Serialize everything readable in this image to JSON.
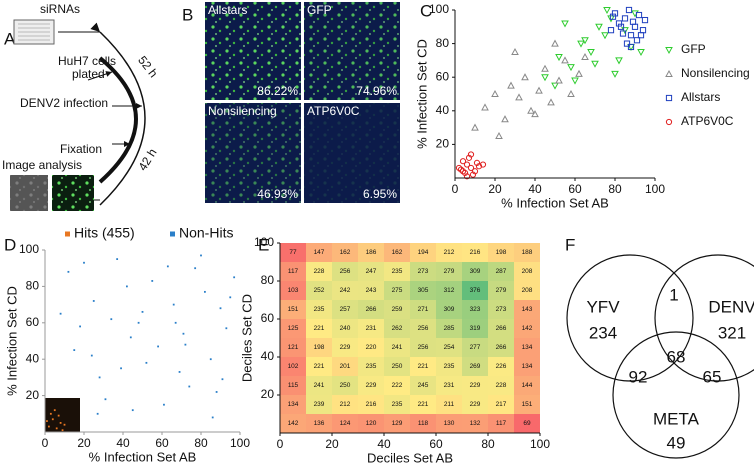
{
  "panel_labels": [
    "A",
    "B",
    "C",
    "D",
    "E",
    "F"
  ],
  "workflow": {
    "sirnas": "siRNAs",
    "cells": [
      "HuH7 cells",
      "plated"
    ],
    "infection": "DENV2 infection",
    "fixation": "Fixation",
    "analysis": "Image analysis",
    "time_total": "52 h",
    "time_infection": "42 h"
  },
  "images": [
    {
      "label": "Allstars",
      "percent": "86.22%"
    },
    {
      "label": "GFP",
      "percent": "74.96%"
    },
    {
      "label": "Nonsilencing",
      "percent": "46.93%"
    },
    {
      "label": "ATP6V0C",
      "percent": "6.95%"
    }
  ],
  "chart_data": [
    {
      "type": "scatter",
      "xlabel": "% Infection Set AB",
      "ylabel": "% Infection Set CD",
      "xlim": [
        0,
        100
      ],
      "ylim": [
        0,
        100
      ],
      "xticks": [
        0,
        20,
        40,
        60,
        80,
        100
      ],
      "yticks": [
        20,
        40,
        60,
        80,
        100
      ],
      "legend": "right",
      "series": [
        {
          "name": "GFP",
          "color": "#2ecc2e",
          "marker": "triangle-down",
          "x": [
            45,
            52,
            58,
            63,
            68,
            72,
            75,
            78,
            82,
            85,
            88,
            60,
            55,
            70,
            80,
            90,
            65,
            50,
            93,
            76
          ],
          "values": [
            60,
            72,
            66,
            80,
            75,
            90,
            85,
            95,
            70,
            88,
            78,
            58,
            92,
            68,
            62,
            98,
            82,
            55,
            75,
            100
          ]
        },
        {
          "name": "Nonsilencing",
          "color": "#888888",
          "marker": "triangle-up",
          "x": [
            10,
            15,
            20,
            25,
            28,
            32,
            35,
            38,
            42,
            45,
            48,
            52,
            55,
            58,
            62,
            30,
            40,
            22,
            50,
            65
          ],
          "values": [
            30,
            42,
            50,
            35,
            55,
            48,
            60,
            40,
            52,
            65,
            45,
            58,
            70,
            50,
            62,
            75,
            38,
            25,
            80,
            72
          ]
        },
        {
          "name": "Allstars",
          "color": "#1f3fbf",
          "marker": "square",
          "x": [
            78,
            82,
            85,
            88,
            90,
            92,
            94,
            86,
            80,
            84,
            89,
            91,
            87,
            83,
            95,
            93,
            79,
            88
          ],
          "values": [
            88,
            92,
            95,
            85,
            90,
            97,
            88,
            80,
            98,
            86,
            93,
            82,
            100,
            90,
            94,
            85,
            96,
            78
          ]
        },
        {
          "name": "ATP6V0C",
          "color": "#e02020",
          "marker": "circle",
          "x": [
            3,
            5,
            6,
            8,
            4,
            10,
            12,
            7,
            2,
            9,
            11,
            6,
            4,
            14,
            8
          ],
          "values": [
            5,
            3,
            8,
            6,
            10,
            4,
            7,
            12,
            6,
            2,
            9,
            1,
            4,
            8,
            14
          ]
        }
      ]
    },
    {
      "type": "scatter",
      "xlabel": "% Infection Set AB",
      "ylabel": "% Infection Set CD",
      "xlim": [
        0,
        100
      ],
      "ylim": [
        0,
        100
      ],
      "xticks": [
        0,
        20,
        40,
        60,
        80,
        100
      ],
      "yticks": [
        20,
        40,
        60,
        80,
        100
      ],
      "legend": "top",
      "series": [
        {
          "name": "Hits (455)",
          "color": "#e87722",
          "marker": "dot",
          "x": [
            2,
            4,
            6,
            3,
            8,
            5,
            10,
            7,
            1,
            9
          ],
          "values": [
            3,
            7,
            2,
            10,
            5,
            12,
            4,
            9,
            6,
            1
          ]
        },
        {
          "name": "Non-Hits",
          "color": "#2a7fc9",
          "marker": "dot",
          "x": [
            12,
            25,
            37,
            48,
            55,
            63,
            71,
            82,
            90,
            97,
            15,
            28,
            34,
            44,
            52,
            66,
            74,
            85,
            93,
            8,
            20,
            31,
            42,
            58,
            69,
            77,
            88,
            95,
            18,
            27,
            39,
            50,
            61,
            72,
            80,
            91,
            24,
            45,
            67,
            86
          ],
          "values": [
            88,
            72,
            95,
            60,
            83,
            91,
            54,
            77,
            68,
            85,
            45,
            30,
            62,
            52,
            38,
            70,
            25,
            40,
            57,
            65,
            93,
            18,
            80,
            47,
            33,
            90,
            22,
            74,
            58,
            10,
            35,
            66,
            15,
            48,
            97,
            29,
            42,
            12,
            60,
            8
          ]
        }
      ]
    },
    {
      "type": "heatmap",
      "xlabel": "Deciles  Set AB",
      "ylabel": "Deciles Set CD",
      "xlim": [
        0,
        100
      ],
      "ylim": [
        0,
        100
      ],
      "xticks": [
        0,
        20,
        40,
        60,
        80,
        100
      ],
      "yticks": [
        20,
        40,
        60,
        80,
        100
      ],
      "colorscale": [
        "#f8696b",
        "#ffeb84",
        "#63be7b"
      ],
      "rows": [
        [
          77,
          147,
          162,
          186,
          162,
          194,
          212,
          216,
          198,
          188
        ],
        [
          117,
          228,
          256,
          247,
          235,
          273,
          279,
          309,
          287,
          208
        ],
        [
          103,
          252,
          242,
          243,
          275,
          305,
          312,
          376,
          279,
          208
        ],
        [
          151,
          235,
          257,
          266,
          259,
          271,
          309,
          323,
          273,
          143
        ],
        [
          125,
          221,
          240,
          231,
          262,
          256,
          285,
          319,
          266,
          142
        ],
        [
          121,
          198,
          229,
          220,
          241,
          256,
          254,
          277,
          266,
          134
        ],
        [
          102,
          221,
          201,
          235,
          250,
          221,
          235,
          269,
          226,
          134
        ],
        [
          115,
          241,
          250,
          229,
          222,
          245,
          231,
          229,
          228,
          144
        ],
        [
          134,
          239,
          212,
          216,
          235,
          221,
          211,
          229,
          217,
          151
        ],
        [
          142,
          136,
          124,
          120,
          129,
          118,
          130,
          132,
          117,
          69
        ]
      ]
    }
  ],
  "venn": {
    "sets": [
      {
        "name": "YFV",
        "only": 234
      },
      {
        "name": "DENV",
        "only": 321
      },
      {
        "name": "META",
        "only": 49
      }
    ],
    "yfv_denv": 1,
    "yfv_meta": 92,
    "denv_meta": 65,
    "all": 68
  }
}
